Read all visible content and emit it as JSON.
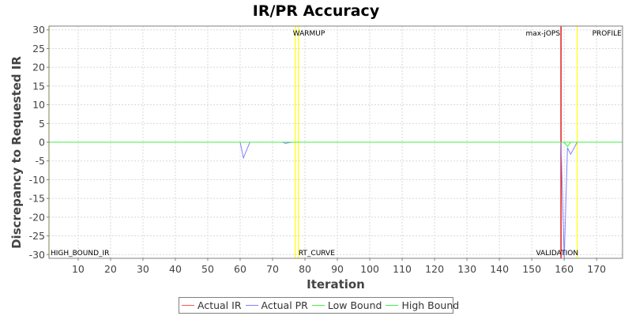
{
  "chart_data": {
    "type": "line",
    "title": "IR/PR Accuracy",
    "xlabel": "Iteration",
    "ylabel": "Discrepancy to Requested IR",
    "xlim": [
      1,
      178
    ],
    "ylim": [
      -31,
      31
    ],
    "x_ticks": [
      10,
      20,
      30,
      40,
      50,
      60,
      70,
      80,
      90,
      100,
      110,
      120,
      130,
      140,
      150,
      160,
      170
    ],
    "y_ticks": [
      30,
      25,
      20,
      15,
      10,
      5,
      0,
      -5,
      -10,
      -15,
      -20,
      -25,
      -30
    ],
    "grid": true,
    "legend_position": "bottom",
    "series": [
      {
        "name": "Actual IR",
        "color": "#ff5555",
        "points": [
          [
            1,
            0
          ],
          [
            178,
            0
          ]
        ]
      },
      {
        "name": "Actual PR",
        "color": "#8080ff",
        "points": [
          [
            1,
            0
          ],
          [
            60,
            0
          ],
          [
            61,
            -4.2
          ],
          [
            63,
            0
          ],
          [
            73,
            0
          ],
          [
            74,
            -0.3
          ],
          [
            76,
            0
          ],
          [
            159,
            0
          ],
          [
            160,
            -31
          ],
          [
            161,
            -1.5
          ],
          [
            162,
            -3.2
          ],
          [
            164,
            0
          ],
          [
            178,
            0
          ]
        ]
      },
      {
        "name": "Low Bound",
        "color": "#44ee44",
        "points": [
          [
            1,
            0
          ],
          [
            160,
            0
          ],
          [
            161,
            -1.2
          ],
          [
            162,
            0
          ],
          [
            178,
            0
          ]
        ]
      },
      {
        "name": "High Bound",
        "color": "#44ee44",
        "points": [
          [
            1,
            0
          ],
          [
            178,
            0
          ]
        ]
      }
    ],
    "markers": [
      {
        "label": "WARMUP",
        "x": 77,
        "color": "#ffff00",
        "label_pos": "top"
      },
      {
        "label": "RT_CURVE",
        "x": 78,
        "color": "#ffff00",
        "label_pos": "bottom"
      },
      {
        "label": "max-jOPS",
        "x": 159,
        "color": "#e00000",
        "label_pos": "top-left"
      },
      {
        "label": "VALIDATION",
        "x": 159,
        "color": "#e00000",
        "label_pos": "bottom-left"
      },
      {
        "label": "PROFILE",
        "x": 164,
        "color": "#ffff00",
        "label_pos": "top-right"
      },
      {
        "label": "HIGH_BOUND_IR",
        "x": 1,
        "color": "#ffff00",
        "label_pos": "bottom-right"
      }
    ]
  }
}
